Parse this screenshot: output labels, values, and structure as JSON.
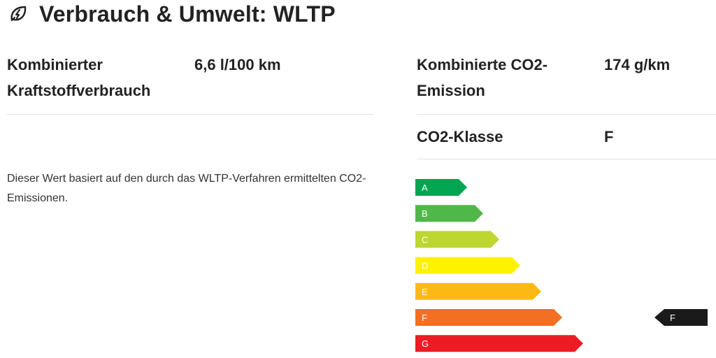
{
  "header": {
    "title": "Verbrauch & Umwelt: WLTP",
    "icon": "leaf-lightning-icon"
  },
  "consumption": {
    "label": "Kombinierter Kraftstoffverbrauch",
    "value": "6,6 l/100 km"
  },
  "emission": {
    "label": "Kombinierte CO2-Emission",
    "value": "174 g/km"
  },
  "co2_class": {
    "label": "CO2-Klasse",
    "value": "F"
  },
  "note": "Dieser Wert basiert auf den durch das WLTP-Verfahren ermittelten CO2-Emissionen.",
  "efficiency_scale": {
    "classes": [
      {
        "letter": "A",
        "color": "#00a651"
      },
      {
        "letter": "B",
        "color": "#50b848"
      },
      {
        "letter": "C",
        "color": "#bed62f"
      },
      {
        "letter": "D",
        "color": "#fff200"
      },
      {
        "letter": "E",
        "color": "#fdb913"
      },
      {
        "letter": "F",
        "color": "#f36f21"
      },
      {
        "letter": "G",
        "color": "#ed1c24"
      }
    ],
    "selected": "F",
    "indicator_color": "#1a1a1a"
  }
}
